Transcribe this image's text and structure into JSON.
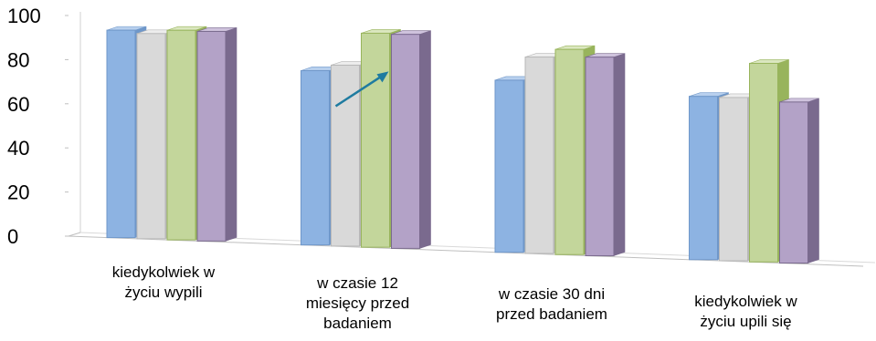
{
  "chart_data": {
    "type": "bar",
    "categories": [
      [
        "kiedykolwiek w",
        "życiu wypili"
      ],
      [
        "w czasie 12",
        "miesięcy przed",
        "badaniem"
      ],
      [
        "w czasie 30 dni",
        "przed badaniem"
      ],
      [
        "kiedykolwiek w",
        "życiu upili się"
      ]
    ],
    "series": [
      {
        "values": [
          94,
          79,
          78,
          74
        ],
        "color": "#8db3e2",
        "side": "#6f97c9",
        "top": "#b8d0ee"
      },
      {
        "values": [
          93,
          82,
          89,
          74
        ],
        "color": "#d9d9d9",
        "side": "#b8b8b8",
        "top": "#ededed"
      },
      {
        "values": [
          95,
          97,
          93,
          90
        ],
        "color": "#c3d69b",
        "side": "#98b45c",
        "top": "#dbe7c0"
      },
      {
        "values": [
          95,
          97,
          90,
          73
        ],
        "color": "#b3a2c7",
        "side": "#7a6a8e",
        "top": "#cfc3dd"
      }
    ],
    "ylim": [
      0,
      100
    ],
    "yticks": [
      0,
      20,
      40,
      60,
      80,
      100
    ],
    "grid": false,
    "legend": "none",
    "annotation": "arrow",
    "annotation_color": "#1f7ba0"
  }
}
